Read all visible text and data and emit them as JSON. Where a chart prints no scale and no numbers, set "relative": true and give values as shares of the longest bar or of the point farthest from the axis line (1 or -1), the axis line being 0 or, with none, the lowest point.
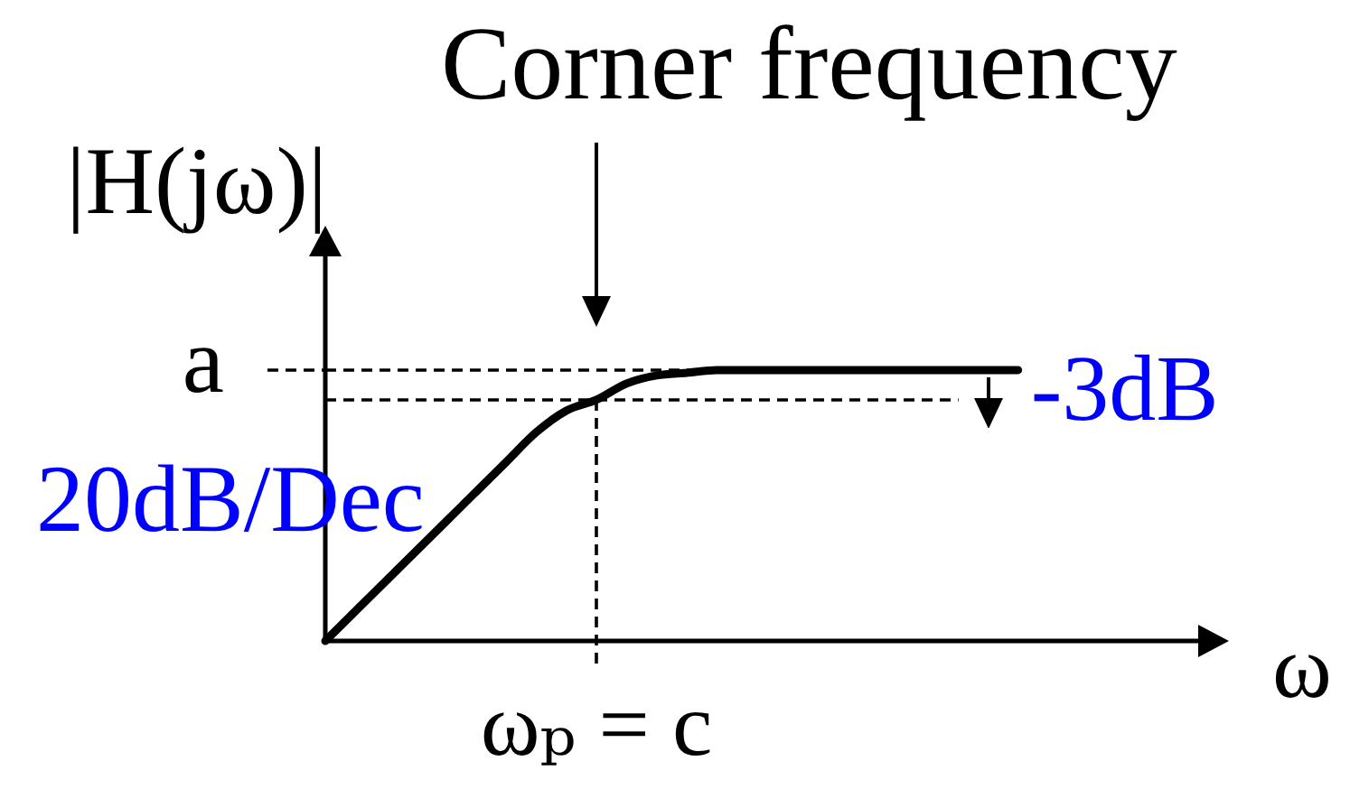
{
  "chart_data": {
    "type": "line",
    "relative": true,
    "xlabel": "ω",
    "ylabel": "|H(jω)|",
    "marker": "none",
    "line_style": "solid",
    "categories": [
      null,
      null,
      null,
      null,
      null,
      null,
      null,
      null,
      null,
      null,
      null,
      null,
      null,
      null,
      null,
      null,
      null,
      null,
      null,
      null,
      null,
      null,
      null,
      null,
      null,
      null,
      null,
      null,
      null,
      null,
      null
    ],
    "series": [
      {
        "color": "#000000",
        "values": [
          0,
          0.11,
          0.22,
          0.33,
          0.44,
          0.55,
          0.66,
          0.77,
          0.85,
          0.89,
          0.95,
          0.98,
          0.99,
          1,
          1,
          1,
          1,
          1,
          1,
          1,
          1,
          1,
          1,
          1,
          null,
          null,
          null,
          null,
          null,
          null,
          null
        ]
      }
    ],
    "ref_lines": [
      {
        "axis": "y",
        "value": 1,
        "label": "a",
        "line_style": "dashed",
        "color": "#000000"
      },
      {
        "axis": "y",
        "value": 0.89,
        "label": "-3dB",
        "line_style": "dashed",
        "color": "#000000"
      },
      {
        "axis": "x",
        "label": "ωₚ = c",
        "line_style": "dashed",
        "color": "#000000"
      }
    ],
    "annotations": [
      "Corner frequency",
      "20dB/Dec"
    ]
  }
}
